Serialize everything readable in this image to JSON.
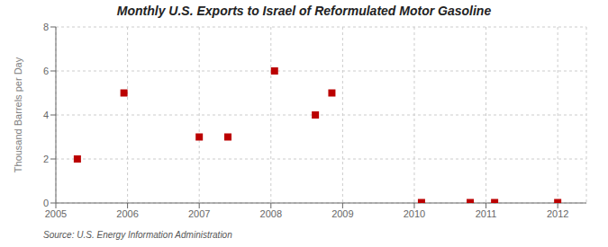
{
  "chart_data": {
    "type": "scatter",
    "title": "Monthly U.S. Exports to Israel of Reformulated Motor Gasoline",
    "y_label": "Thousand Barrels per Day",
    "source": "Source: U.S. Energy Information Administration",
    "x": [
      2005.3,
      2005.95,
      2007.0,
      2007.4,
      2008.05,
      2008.62,
      2008.85,
      2010.1,
      2010.78,
      2011.12,
      2012.0
    ],
    "values": [
      2.0,
      5.0,
      3.0,
      3.0,
      6.0,
      4.0,
      5.0,
      0.02,
      0.02,
      0.02,
      0.02
    ],
    "color": "#bb0000",
    "marker": "square",
    "xlim": [
      2005,
      2012.4
    ],
    "xticks": [
      2005,
      2006,
      2007,
      2008,
      2009,
      2010,
      2011,
      2012
    ],
    "ylim": [
      0,
      8
    ],
    "yticks": [
      0,
      2,
      4,
      6,
      8
    ],
    "grid": true
  }
}
